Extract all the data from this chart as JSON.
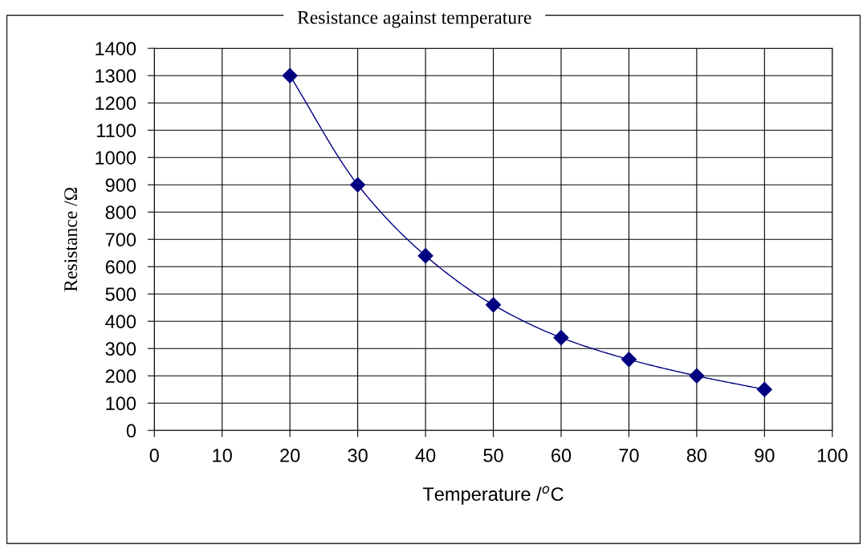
{
  "chart_data": {
    "type": "line",
    "title": "Resistance against temperature",
    "xlabel": "Temperature /$^{o}$C",
    "ylabel": "Resistance /Ω",
    "x": [
      20,
      30,
      40,
      50,
      60,
      70,
      80,
      90
    ],
    "series": [
      {
        "color": "#000080",
        "values": [
          1300,
          900,
          640,
          460,
          340,
          260,
          200,
          150
        ]
      }
    ],
    "xlim": [
      0,
      100
    ],
    "xticks": [
      0,
      10,
      20,
      30,
      40,
      50,
      60,
      70,
      80,
      90,
      100
    ],
    "ylim": [
      0,
      1400
    ],
    "yticks": [
      0,
      100,
      200,
      300,
      400,
      500,
      600,
      700,
      800,
      900,
      1000,
      1100,
      1200,
      1300,
      1400
    ],
    "grid": true,
    "marker": "diamond",
    "line_style": "solid",
    "legend": false
  }
}
